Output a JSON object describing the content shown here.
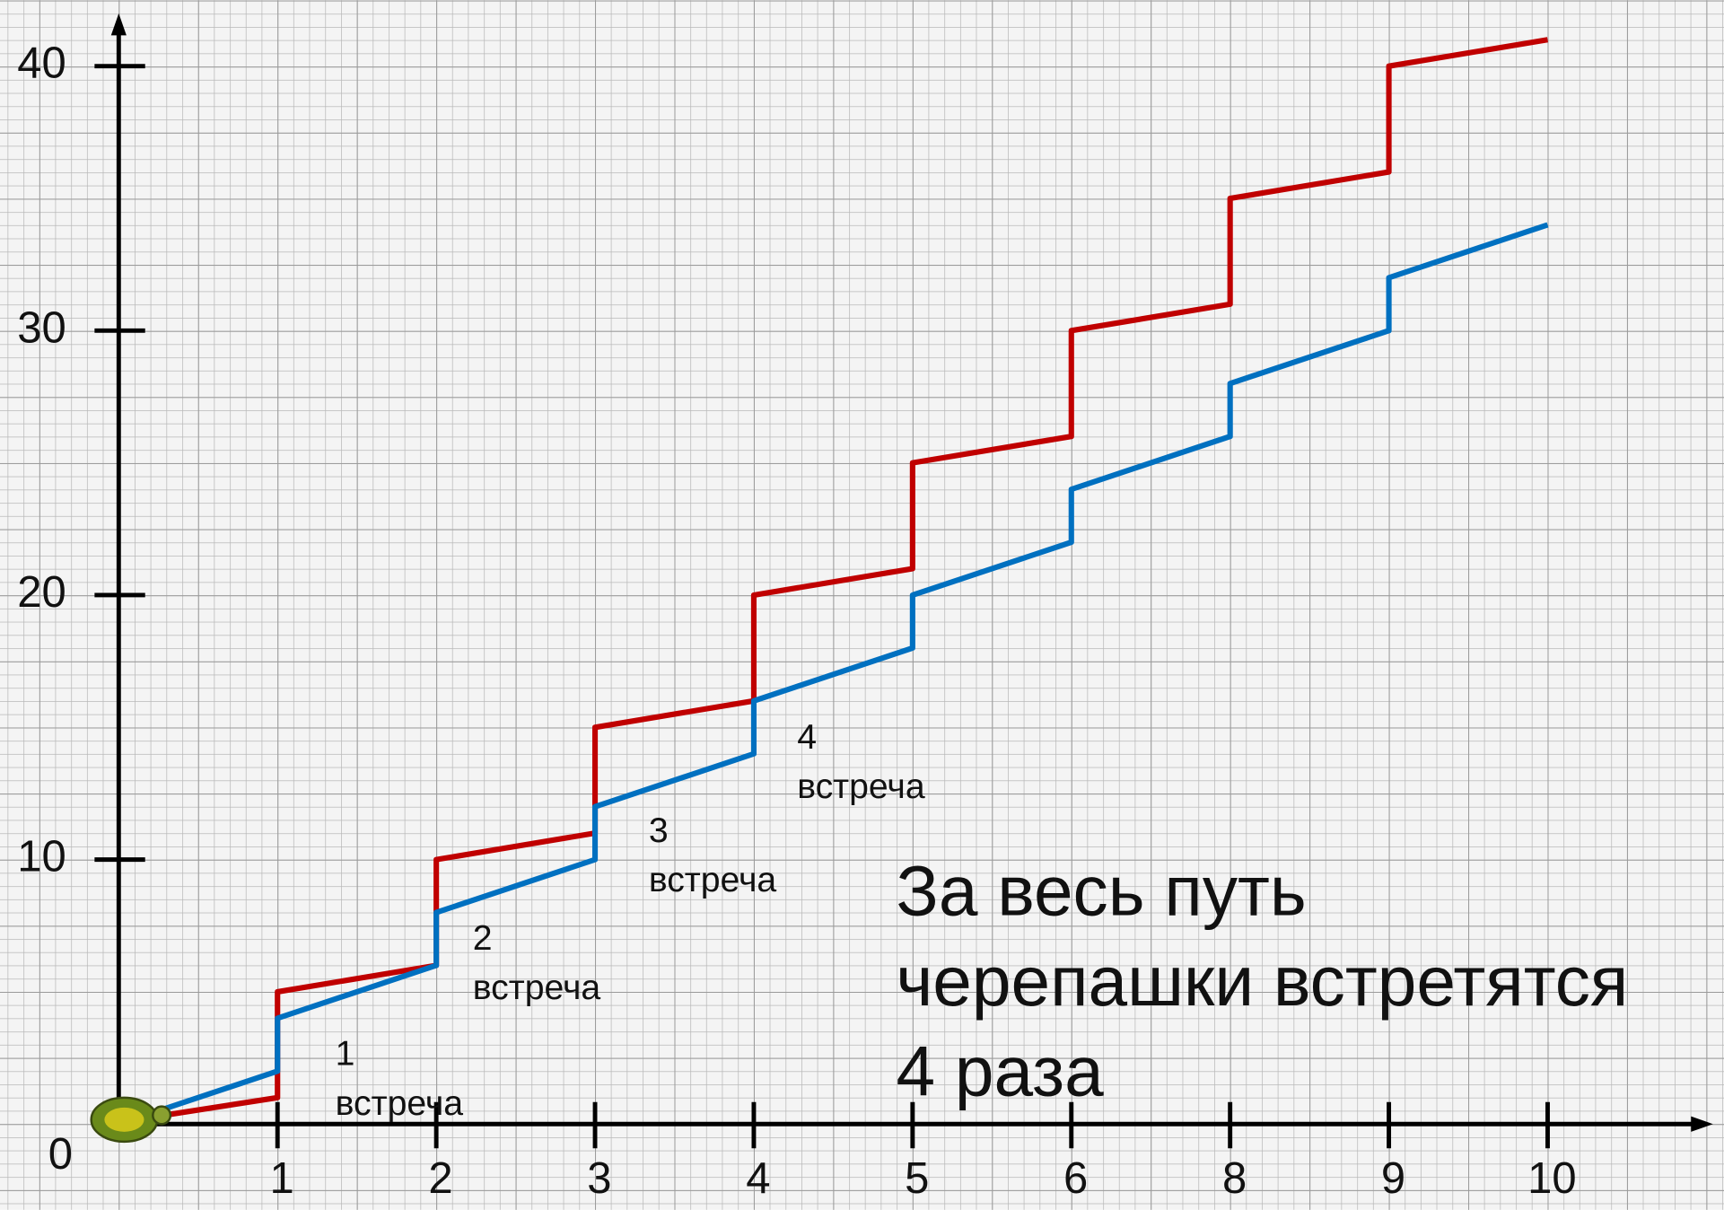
{
  "chart_data": {
    "type": "line",
    "x": [
      0.25,
      1,
      1,
      2,
      2,
      3,
      3,
      4,
      4,
      5,
      5,
      6,
      6,
      7,
      7,
      8,
      8,
      9
    ],
    "series": [
      {
        "color": "#c00000",
        "values": [
          0.3,
          1,
          5,
          6,
          10,
          11,
          15,
          16,
          20,
          21,
          25,
          26,
          30,
          31,
          35,
          36,
          40,
          41
        ]
      },
      {
        "color": "#0070c0",
        "values": [
          0.5,
          2,
          4,
          6,
          8,
          10,
          12,
          14,
          16,
          18,
          20,
          22,
          24,
          26,
          28,
          30,
          32,
          34
        ]
      }
    ],
    "xlim": [
      0,
      10
    ],
    "ylim": [
      0,
      42
    ],
    "xticks": [
      1,
      2,
      3,
      4,
      5,
      6,
      {
        "value": 7,
        "label": "8"
      },
      {
        "value": 8,
        "label": "9"
      },
      {
        "value": 9,
        "label": "10"
      }
    ],
    "yticks": [
      10,
      20,
      30,
      40
    ],
    "origin_label": "0",
    "annotations": [
      {
        "text": [
          "1",
          "встреча"
        ]
      },
      {
        "text": [
          "2",
          "встреча"
        ]
      },
      {
        "text": [
          "3",
          "встреча"
        ]
      },
      {
        "text": [
          "4",
          "встреча"
        ]
      }
    ],
    "conclusion": [
      "За весь путь",
      "черепашки встретятся",
      "4 раза"
    ]
  }
}
